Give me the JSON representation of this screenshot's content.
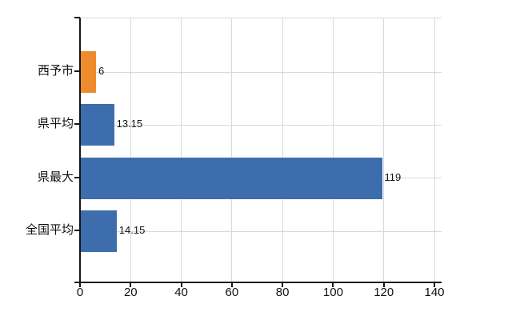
{
  "chart_data": {
    "type": "bar",
    "orientation": "horizontal",
    "title": "",
    "xlabel": "",
    "ylabel": "",
    "categories": [
      "西予市",
      "県平均",
      "県最大",
      "全国平均"
    ],
    "values": [
      6,
      13.15,
      119,
      14.15
    ],
    "value_labels": [
      "6",
      "13.15",
      "119",
      "14.15"
    ],
    "bar_colors": [
      "#ee8b2c",
      "#3d6dac",
      "#3d6dac",
      "#3d6dac"
    ],
    "xlim": [
      0,
      140
    ],
    "x_ticks": [
      0,
      20,
      40,
      60,
      80,
      100,
      120,
      140
    ],
    "grid": true,
    "legend": "none"
  },
  "colors": {
    "background": "#ffffff",
    "grid": "#d9d9d9",
    "axis": "#161616",
    "text": "#111111",
    "bar_highlight": "#ee8b2c",
    "bar_default": "#3d6dac"
  }
}
